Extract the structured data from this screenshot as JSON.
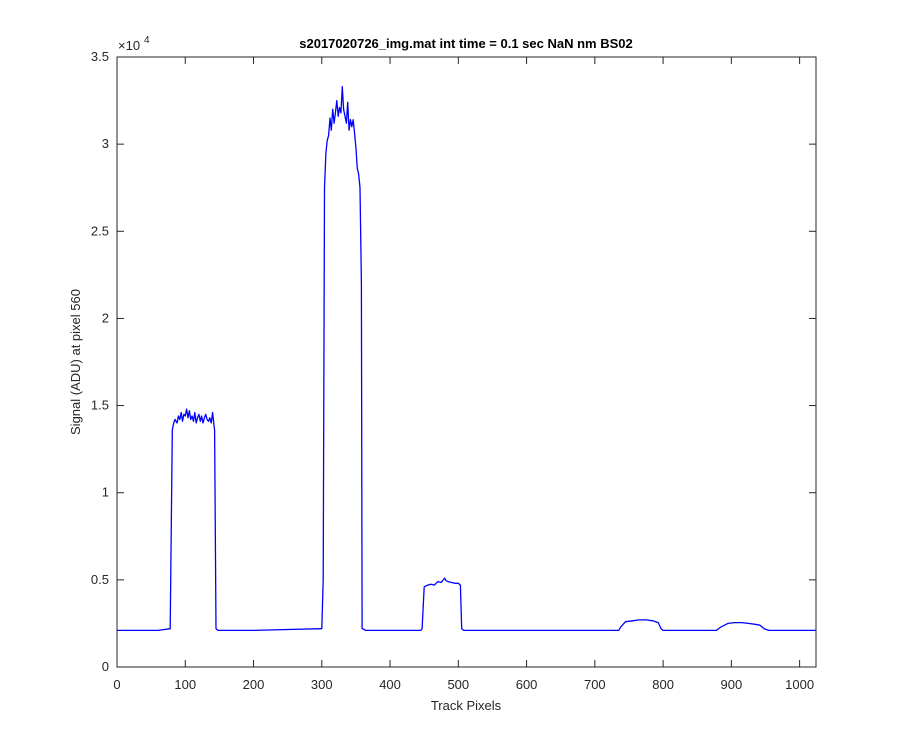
{
  "chart_data": {
    "type": "line",
    "title": "s2017020726_img.mat int time = 0.1 sec  NaN nm BS02",
    "xlabel": "Track Pixels",
    "ylabel": "Signal (ADU) at pixel 560",
    "xlim": [
      0,
      1024
    ],
    "ylim": [
      0,
      35000
    ],
    "x_ticks": [
      0,
      100,
      200,
      300,
      400,
      500,
      600,
      700,
      800,
      900,
      1000
    ],
    "y_ticks": [
      0,
      0.5,
      1,
      1.5,
      2,
      2.5,
      3,
      3.5
    ],
    "y_tick_labels": [
      "0",
      "0.5",
      "1",
      "1.5",
      "2",
      "2.5",
      "3",
      "3.5"
    ],
    "y_exponent_base": "×10",
    "y_exponent_power": "4",
    "grid": false,
    "series": [
      {
        "color": "#0000ff",
        "x": [
          0,
          60,
          78,
          81,
          83,
          85,
          88,
          90,
          92,
          94,
          96,
          98,
          100,
          102,
          104,
          106,
          108,
          110,
          112,
          114,
          116,
          118,
          120,
          122,
          124,
          126,
          128,
          130,
          132,
          134,
          136,
          138,
          140,
          142,
          143,
          145,
          148,
          200,
          250,
          298,
          300,
          302,
          304,
          306,
          308,
          310,
          312,
          314,
          316,
          318,
          320,
          322,
          324,
          326,
          328,
          330,
          332,
          334,
          336,
          338,
          340,
          342,
          344,
          346,
          348,
          350,
          352,
          354,
          356,
          358,
          359,
          360,
          362,
          364,
          366,
          370,
          400,
          445,
          447,
          450,
          455,
          460,
          465,
          470,
          475,
          478,
          480,
          482,
          485,
          490,
          495,
          500,
          503,
          505,
          508,
          550,
          600,
          650,
          735,
          738,
          745,
          755,
          765,
          775,
          785,
          793,
          797,
          800,
          850,
          878,
          885,
          895,
          905,
          915,
          925,
          935,
          942,
          948,
          955,
          1000,
          1024
        ],
        "y": [
          2100,
          2100,
          2200,
          13600,
          14000,
          14200,
          14000,
          14400,
          14200,
          14600,
          14100,
          14500,
          14400,
          14800,
          14300,
          14700,
          14200,
          14400,
          14100,
          14600,
          14000,
          14300,
          14500,
          14100,
          14400,
          14000,
          14300,
          14500,
          14200,
          14100,
          14300,
          14000,
          14600,
          13900,
          13600,
          2200,
          2100,
          2100,
          2150,
          2200,
          2200,
          5000,
          27500,
          29500,
          30200,
          30500,
          31500,
          30800,
          32000,
          31200,
          31800,
          32500,
          31600,
          32100,
          31800,
          33300,
          32000,
          31600,
          31200,
          32400,
          30800,
          31400,
          31000,
          31400,
          30600,
          29800,
          28600,
          28300,
          27500,
          22000,
          2200,
          2200,
          2150,
          2100,
          2100,
          2100,
          2100,
          2100,
          2200,
          4600,
          4700,
          4750,
          4700,
          4900,
          4850,
          5000,
          5100,
          4950,
          4900,
          4850,
          4800,
          4800,
          4700,
          2200,
          2100,
          2100,
          2100,
          2100,
          2100,
          2300,
          2600,
          2650,
          2700,
          2700,
          2650,
          2550,
          2200,
          2100,
          2100,
          2100,
          2300,
          2500,
          2550,
          2550,
          2500,
          2450,
          2400,
          2200,
          2100,
          2100,
          2100
        ]
      }
    ]
  }
}
